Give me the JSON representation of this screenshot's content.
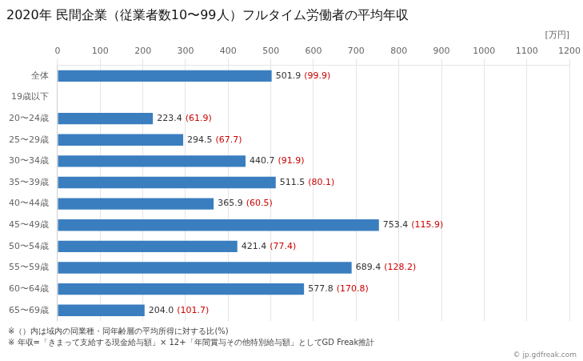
{
  "chart_data": {
    "type": "bar",
    "orientation": "horizontal",
    "title": "2020年 民間企業（従業者数10〜99人）フルタイム労働者の平均年収",
    "xlabel": "[万円]",
    "categories": [
      "全体",
      "19歳以下",
      "20〜24歳",
      "25〜29歳",
      "30〜34歳",
      "35〜39歳",
      "40〜44歳",
      "45〜49歳",
      "50〜54歳",
      "55〜59歳",
      "60〜64歳",
      "65〜69歳"
    ],
    "values": [
      501.9,
      0,
      223.4,
      294.5,
      440.7,
      511.5,
      365.9,
      753.4,
      421.4,
      689.4,
      577.8,
      204.0
    ],
    "value_labels": [
      "501.9",
      null,
      "223.4",
      "294.5",
      "440.7",
      "511.5",
      "365.9",
      "753.4",
      "421.4",
      "689.4",
      "577.8",
      "204.0"
    ],
    "ratios": [
      99.9,
      null,
      61.9,
      67.7,
      91.9,
      80.1,
      60.5,
      115.9,
      77.4,
      128.2,
      170.8,
      101.7
    ],
    "ratio_labels": [
      "(99.9)",
      null,
      "(61.9)",
      "(67.7)",
      "(91.9)",
      "(80.1)",
      "(60.5)",
      "(115.9)",
      "(77.4)",
      "(128.2)",
      "(170.8)",
      "(101.7)"
    ],
    "ratio_color": "#cc0000",
    "color": "#3a7ebf",
    "xlim": [
      0,
      1200
    ],
    "xticks": [
      0,
      100,
      200,
      300,
      400,
      500,
      600,
      700,
      800,
      900,
      1000,
      1100,
      1200
    ],
    "grid": true,
    "data_labels": true,
    "annotations": [
      "※（）内は域内の同業種・同年齢層の平均所得に対する比(%)",
      "※ 年収=「きまって支給する現金給与額」× 12+「年間賞与その他特別給与額」としてGD Freak推計",
      "© jp.gdfreak.com"
    ]
  }
}
